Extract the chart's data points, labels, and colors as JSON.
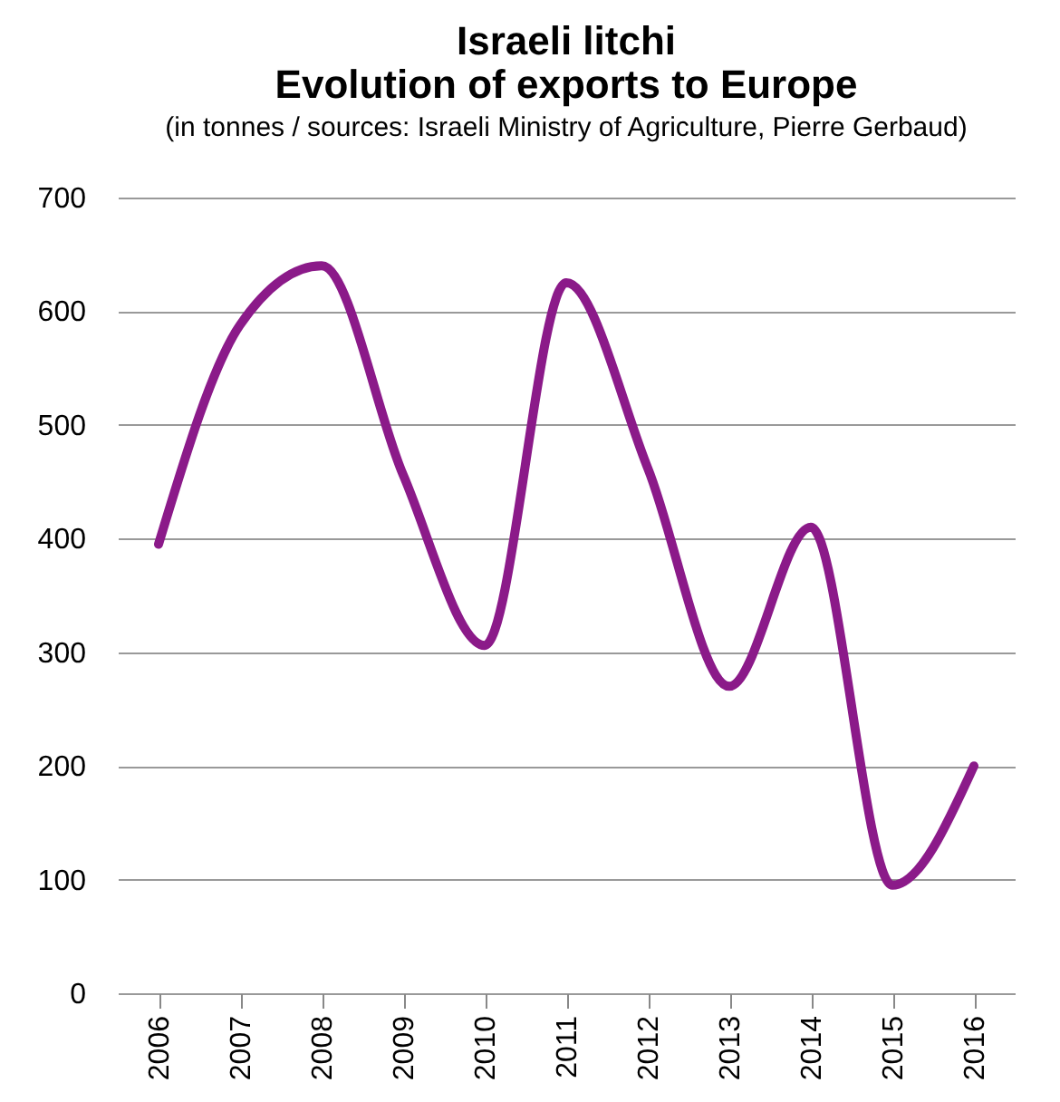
{
  "chart_data": {
    "type": "line",
    "title": [
      "Israeli litchi",
      "Evolution of exports to Europe"
    ],
    "subtitle": "(in tonnes / sources: Israeli Ministry of Agriculture, Pierre Gerbaud)",
    "categories": [
      "2006",
      "2007",
      "2008",
      "2009",
      "2010",
      "2011",
      "2012",
      "2013",
      "2014",
      "2015",
      "2016"
    ],
    "series": [
      {
        "color": "#8b1a89",
        "values": [
          395,
          588,
          640,
          456,
          306,
          625,
          462,
          270,
          410,
          95,
          200
        ]
      }
    ],
    "ylim": [
      0,
      700
    ],
    "yticks": [
      0,
      100,
      200,
      300,
      400,
      500,
      600,
      700
    ],
    "grid": "y",
    "marker": "none",
    "line_style": "solid"
  }
}
